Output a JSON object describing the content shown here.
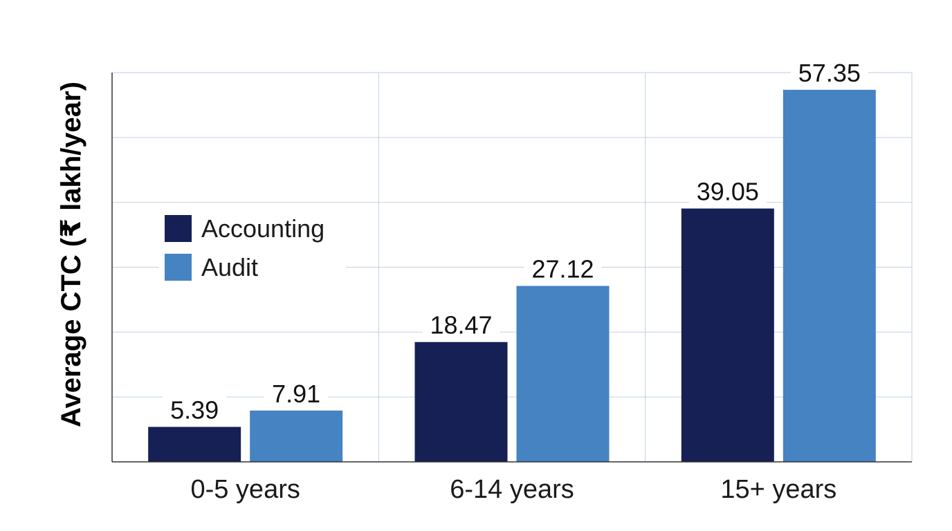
{
  "chart_data": {
    "type": "bar",
    "title": "",
    "xlabel": "",
    "ylabel": "Average CTC (₹ lakh/year)",
    "categories": [
      "0-5 years",
      "6-14 years",
      "15+ years"
    ],
    "series": [
      {
        "name": "Accounting",
        "values": [
          5.39,
          18.47,
          39.05
        ],
        "color": "#162055"
      },
      {
        "name": "Audit",
        "values": [
          7.91,
          27.12,
          57.35
        ],
        "color": "#4683c2"
      }
    ],
    "value_labels": {
      "Accounting": [
        "5.39",
        "18.47",
        "39.05"
      ],
      "Audit": [
        "7.91",
        "27.12",
        "57.35"
      ]
    },
    "ylim": [
      0,
      60
    ],
    "y_gridline_step": 10,
    "y_tick_labels_shown": false,
    "grid": true,
    "legend_position": "left-middle"
  }
}
